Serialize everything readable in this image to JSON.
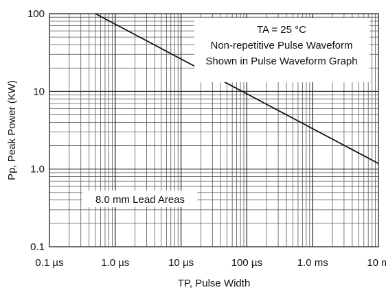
{
  "chart_data": {
    "type": "line",
    "xlabel": "TP, Pulse Width",
    "ylabel": "Pp, Peak Power (KW)",
    "xscale": "log",
    "yscale": "log",
    "xlim": [
      0.1,
      10000
    ],
    "ylim": [
      0.1,
      100
    ],
    "x_tick_labels": [
      "0.1 µs",
      "1.0 µs",
      "10 µs",
      "100 µs",
      "1.0 ms",
      "10 m"
    ],
    "y_tick_labels": [
      "0.1",
      "1.0",
      "10",
      "100"
    ],
    "grid": true,
    "series": [
      {
        "x_unit": "µs",
        "x": [
          0.5,
          10000
        ],
        "y": [
          100,
          1.18
        ]
      }
    ],
    "annotations": [
      "TA = 25 °C",
      "Non-repetitive Pulse Waveform",
      "Shown in Pulse Waveform Graph",
      "8.0 mm Lead Areas"
    ],
    "colors": {
      "grid": "#555555",
      "line": "#111111",
      "background": "#ffffff"
    }
  }
}
